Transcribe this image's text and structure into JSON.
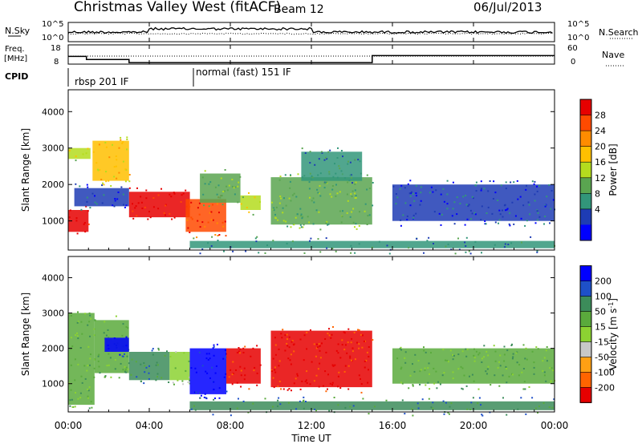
{
  "header": {
    "title": "Christmas Valley West (fitACF)",
    "beam": "Beam 12",
    "date": "06/Jul/2013"
  },
  "noise_panel": {
    "left_label": "N.Sky",
    "right_label": "N.Search",
    "left_ticks": [
      "10^5",
      "10^0"
    ],
    "right_ticks": [
      "10^5",
      "10^0"
    ]
  },
  "freq_panel": {
    "left_label_1": "Freq.",
    "left_label_2": "[MHz]",
    "left_ticks": [
      "18",
      "8"
    ],
    "right_label": "Nave",
    "right_ticks": [
      "60",
      "0"
    ]
  },
  "cpid": {
    "label": "CPID",
    "modes": [
      {
        "text": "rbsp 201 IF",
        "start_hour": 0.0
      },
      {
        "text": "normal (fast) 151 IF",
        "start_hour": 6.0
      }
    ]
  },
  "time_axis": {
    "label": "Time UT",
    "range_hours": [
      0,
      24
    ],
    "ticks": [
      "00:00",
      "04:00",
      "08:00",
      "12:00",
      "16:00",
      "20:00",
      "00:00"
    ]
  },
  "chart_data": [
    {
      "type": "line",
      "title": "",
      "ylabel": "Freq. [MHz]",
      "ylim": [
        8,
        18
      ],
      "series": [
        {
          "x": [
            0,
            0.9,
            0.9,
            3.0,
            3.0,
            15.0,
            15.0,
            24.0
          ],
          "values": [
            12,
            12,
            10.4,
            10.4,
            8.8,
            8.8,
            12.4,
            12.4
          ]
        }
      ]
    },
    {
      "type": "heatmap",
      "variable": "Power",
      "xlabel": "Time UT",
      "ylabel": "Slant Range [km]",
      "xlim": [
        0,
        24
      ],
      "ylim": [
        200,
        4600
      ],
      "y_ticks": [
        1000,
        2000,
        3000,
        4000
      ],
      "colorbar": {
        "label": "Power [dB]",
        "ticks": [
          "28",
          "24",
          "20",
          "16",
          "12",
          "8",
          "4"
        ],
        "colors": [
          "#e60000",
          "#ff4a00",
          "#ff8c00",
          "#ffc000",
          "#b4dc1e",
          "#5aa550",
          "#32967a",
          "#1e3cb4",
          "#0000ff"
        ]
      },
      "regions": [
        {
          "t0": 0.0,
          "t1": 1.0,
          "r0": 700,
          "r1": 1300,
          "level": 8
        },
        {
          "t0": 0.0,
          "t1": 1.1,
          "r0": 2700,
          "r1": 3000,
          "level": 4
        },
        {
          "t0": 1.2,
          "t1": 3.0,
          "r0": 2100,
          "r1": 3200,
          "level": 5
        },
        {
          "t0": 0.3,
          "t1": 3.0,
          "r0": 1400,
          "r1": 1900,
          "level": 1
        },
        {
          "t0": 3.0,
          "t1": 6.0,
          "r0": 1100,
          "r1": 1800,
          "level": 8
        },
        {
          "t0": 5.8,
          "t1": 7.8,
          "r0": 700,
          "r1": 1600,
          "level": 7
        },
        {
          "t0": 6.5,
          "t1": 8.5,
          "r0": 1500,
          "r1": 2300,
          "level": 3
        },
        {
          "t0": 8.5,
          "t1": 9.5,
          "r0": 1300,
          "r1": 1700,
          "level": 4
        },
        {
          "t0": 10.0,
          "t1": 15.0,
          "r0": 900,
          "r1": 2200,
          "level": 3
        },
        {
          "t0": 11.5,
          "t1": 14.5,
          "r0": 2100,
          "r1": 2900,
          "level": 2
        },
        {
          "t0": 16.0,
          "t1": 24.0,
          "r0": 1000,
          "r1": 2000,
          "level": 1
        },
        {
          "t0": 6.0,
          "t1": 24.0,
          "r0": 250,
          "r1": 450,
          "level": 2
        }
      ]
    },
    {
      "type": "heatmap",
      "variable": "Velocity",
      "xlabel": "Time UT",
      "ylabel": "Slant Range [km]",
      "xlim": [
        0,
        24
      ],
      "ylim": [
        200,
        4600
      ],
      "y_ticks": [
        1000,
        2000,
        3000,
        4000
      ],
      "colorbar": {
        "label": "Velocity [m s^-1]",
        "ticks": [
          "200",
          "100",
          "50",
          "15",
          "-15",
          "-50",
          "-100",
          "-200"
        ],
        "colors": [
          "#0000ff",
          "#1e50c8",
          "#3c8c5a",
          "#5aaa3c",
          "#8cd232",
          "#c8c8c8",
          "#ffa014",
          "#ff6400",
          "#e60000"
        ]
      },
      "regions": [
        {
          "t0": 0.0,
          "t1": 1.3,
          "r0": 400,
          "r1": 3000,
          "level": 5
        },
        {
          "t0": 1.3,
          "t1": 3.0,
          "r0": 1300,
          "r1": 2800,
          "level": 5
        },
        {
          "t0": 1.8,
          "t1": 3.0,
          "r0": 1900,
          "r1": 2300,
          "level": 8
        },
        {
          "t0": 3.0,
          "t1": 5.0,
          "r0": 1100,
          "r1": 1900,
          "level": 6
        },
        {
          "t0": 5.0,
          "t1": 6.0,
          "r0": 1100,
          "r1": 1900,
          "level": 4
        },
        {
          "t0": 6.0,
          "t1": 7.8,
          "r0": 700,
          "r1": 2000,
          "level": 8
        },
        {
          "t0": 7.8,
          "t1": 9.5,
          "r0": 1000,
          "r1": 2000,
          "level": 0
        },
        {
          "t0": 10.0,
          "t1": 15.0,
          "r0": 900,
          "r1": 2500,
          "level": 0
        },
        {
          "t0": 16.0,
          "t1": 24.0,
          "r0": 1000,
          "r1": 2000,
          "level": 5
        },
        {
          "t0": 6.0,
          "t1": 24.0,
          "r0": 250,
          "r1": 500,
          "level": 6
        }
      ]
    }
  ]
}
